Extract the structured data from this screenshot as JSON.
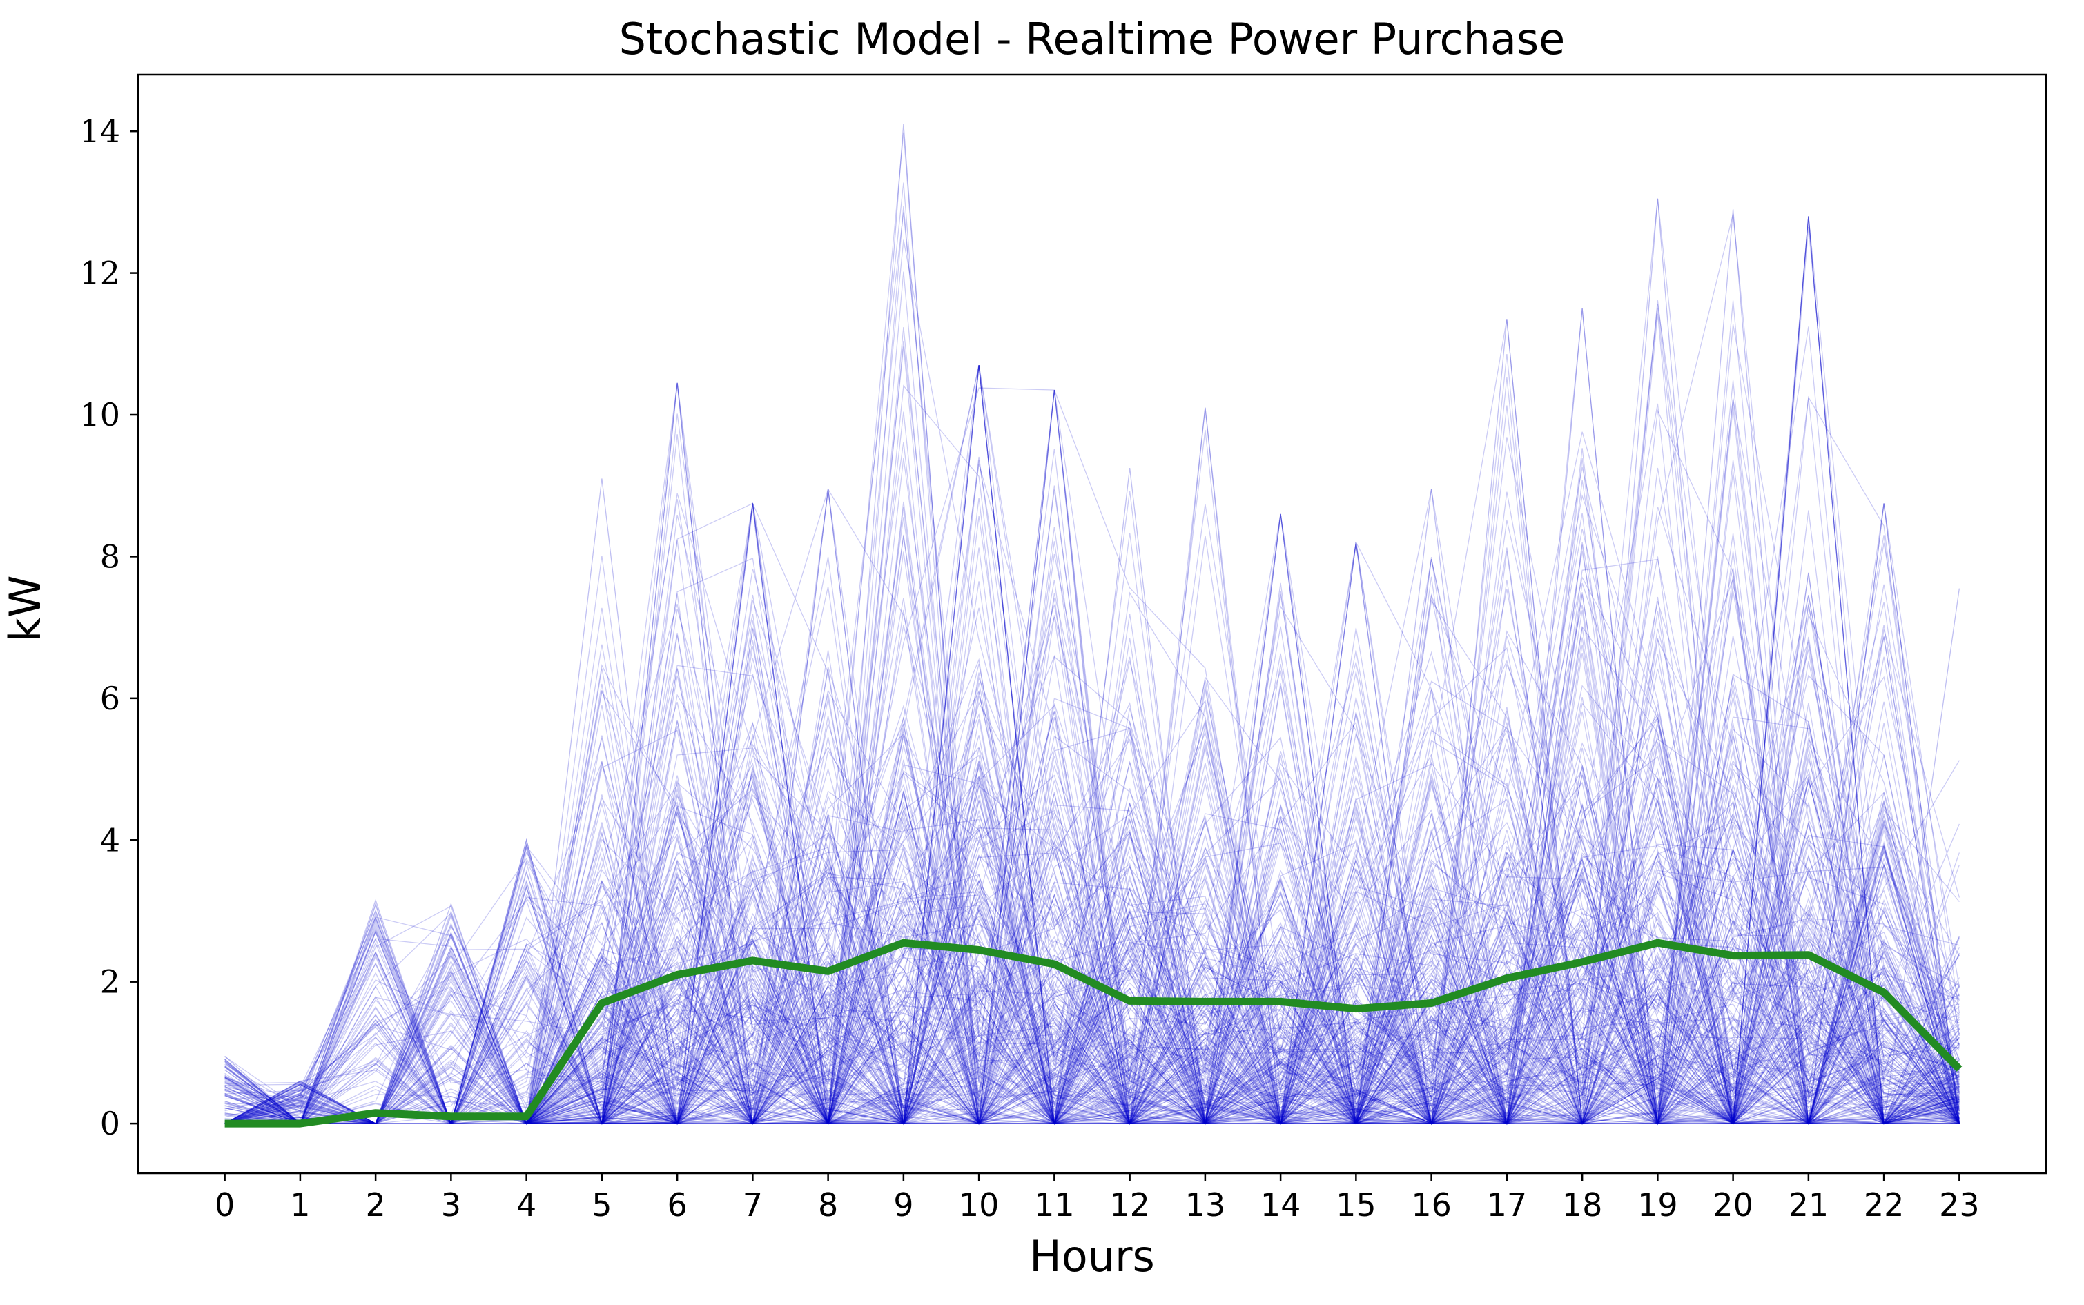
{
  "chart_data": {
    "type": "line",
    "title": "Stochastic Model - Realtime Power Purchase",
    "xlabel": "Hours",
    "ylabel": "kW",
    "x": [
      0,
      1,
      2,
      3,
      4,
      5,
      6,
      7,
      8,
      9,
      10,
      11,
      12,
      13,
      14,
      15,
      16,
      17,
      18,
      19,
      20,
      21,
      22,
      23
    ],
    "xlim": [
      -1.15,
      24.15
    ],
    "ylim": [
      -0.7,
      14.8
    ],
    "x_ticks": [
      "0",
      "1",
      "2",
      "3",
      "4",
      "5",
      "6",
      "7",
      "8",
      "9",
      "10",
      "11",
      "12",
      "13",
      "14",
      "15",
      "16",
      "17",
      "18",
      "19",
      "20",
      "21",
      "22",
      "23"
    ],
    "y_ticks": [
      "0",
      "2",
      "4",
      "6",
      "8",
      "10",
      "12",
      "14"
    ],
    "grid": false,
    "legend": "none",
    "series": [
      {
        "role": "scenarios",
        "color": "#0000cc",
        "note_count": 300,
        "hourly_max": [
          0.95,
          0.6,
          3.15,
          3.1,
          4.0,
          9.1,
          10.45,
          8.75,
          8.95,
          14.1,
          10.7,
          10.35,
          9.25,
          10.1,
          8.6,
          8.2,
          8.95,
          11.35,
          11.5,
          13.05,
          12.9,
          12.8,
          8.75,
          7.55
        ]
      },
      {
        "role": "mean",
        "color": "#228b22",
        "values": [
          0.0,
          0.0,
          0.15,
          0.1,
          0.1,
          1.7,
          2.1,
          2.3,
          2.15,
          2.55,
          2.45,
          2.25,
          1.73,
          1.72,
          1.72,
          1.62,
          1.7,
          2.05,
          2.28,
          2.55,
          2.37,
          2.38,
          1.85,
          0.77
        ]
      }
    ]
  }
}
